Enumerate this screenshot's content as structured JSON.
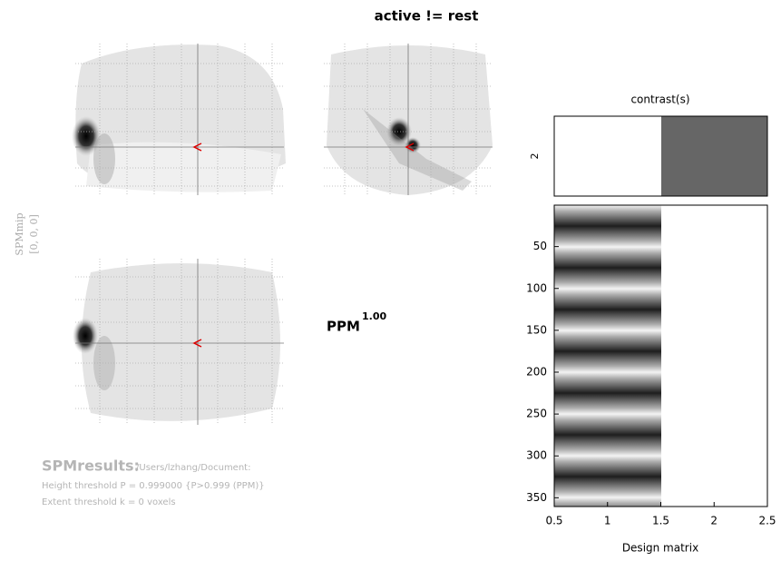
{
  "title": "active != rest",
  "mip_label": "SPMmip",
  "mip_coords": "[0, 0, 0]",
  "ppm": {
    "label": "PPM",
    "exponent": "1.00"
  },
  "results": {
    "heading": "SPMresults:",
    "path": "/Users/lzhang/Document:",
    "height_threshold": "Height threshold P = 0.999000  {P>0.999 (PPM)}",
    "extent_threshold": "Extent threshold k = 0 voxels"
  },
  "contrast": {
    "title": "contrast(s)",
    "row_label": "2"
  },
  "design_matrix": {
    "xlabel": "Design matrix",
    "xlim": [
      0.5,
      2.5
    ],
    "xticks": [
      0.5,
      1,
      1.5,
      2,
      2.5
    ],
    "ylim": [
      0.5,
      360.5
    ],
    "yticks": [
      50,
      100,
      150,
      200,
      250,
      300,
      350
    ]
  }
}
